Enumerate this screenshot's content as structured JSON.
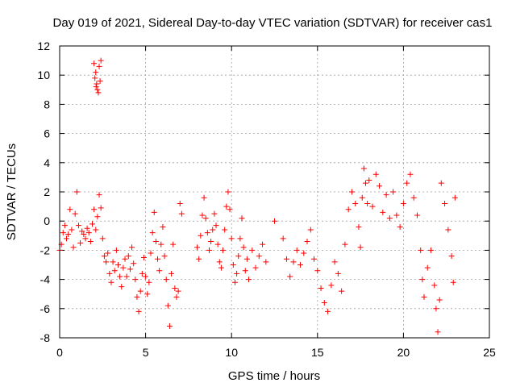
{
  "chart_data": {
    "type": "scatter",
    "title": "Day 019 of 2021, Sidereal Day-to-day VTEC variation (SDTVAR) for receiver cas1",
    "xlabel": "GPS time / hours",
    "ylabel": "SDTVAR / TECUs",
    "xlim": [
      0,
      25
    ],
    "ylim": [
      -8,
      12
    ],
    "xticks": [
      0,
      5,
      10,
      15,
      20,
      25
    ],
    "yticks": [
      -8,
      -6,
      -4,
      -2,
      0,
      2,
      4,
      6,
      8,
      10,
      12
    ],
    "grid": true,
    "marker": "+",
    "series_color": "#ff0000",
    "series": [
      {
        "name": "SDTVAR",
        "points": [
          [
            0.0,
            -2.0
          ],
          [
            0.1,
            -1.6
          ],
          [
            0.2,
            -0.8
          ],
          [
            0.3,
            -0.3
          ],
          [
            0.4,
            -1.2
          ],
          [
            0.5,
            -0.9
          ],
          [
            0.6,
            0.8
          ],
          [
            0.7,
            -0.6
          ],
          [
            0.8,
            -1.8
          ],
          [
            0.9,
            0.5
          ],
          [
            1.0,
            2.0
          ],
          [
            1.1,
            -0.3
          ],
          [
            1.2,
            -1.5
          ],
          [
            1.3,
            -0.7
          ],
          [
            1.4,
            -0.9
          ],
          [
            1.5,
            -1.2
          ],
          [
            1.6,
            -0.5
          ],
          [
            1.7,
            -0.8
          ],
          [
            1.8,
            -1.4
          ],
          [
            1.9,
            -0.2
          ],
          [
            2.0,
            0.8
          ],
          [
            2.1,
            -0.6
          ],
          [
            2.2,
            0.3
          ],
          [
            2.3,
            1.8
          ],
          [
            2.4,
            0.9
          ],
          [
            2.5,
            -1.2
          ],
          [
            2.6,
            -2.4
          ],
          [
            2.7,
            -2.8
          ],
          [
            2.8,
            -2.2
          ],
          [
            2.9,
            -3.6
          ],
          [
            3.0,
            -4.2
          ],
          [
            3.1,
            -2.8
          ],
          [
            3.2,
            -3.4
          ],
          [
            3.3,
            -2.0
          ],
          [
            3.4,
            -3.0
          ],
          [
            3.5,
            -3.8
          ],
          [
            3.6,
            -4.5
          ],
          [
            3.7,
            -3.2
          ],
          [
            3.8,
            -2.6
          ],
          [
            3.9,
            -3.8
          ],
          [
            4.0,
            -2.4
          ],
          [
            4.1,
            -3.3
          ],
          [
            4.2,
            -1.8
          ],
          [
            4.3,
            -2.9
          ],
          [
            4.4,
            -4.0
          ],
          [
            4.5,
            -5.2
          ],
          [
            4.6,
            -6.2
          ],
          [
            4.7,
            -4.8
          ],
          [
            4.8,
            -3.6
          ],
          [
            4.9,
            -2.5
          ],
          [
            5.0,
            -3.8
          ],
          [
            5.1,
            -5.0
          ],
          [
            5.2,
            -4.2
          ],
          [
            5.3,
            -2.2
          ],
          [
            5.4,
            -0.8
          ],
          [
            5.5,
            0.6
          ],
          [
            5.6,
            -1.4
          ],
          [
            5.7,
            -2.6
          ],
          [
            5.8,
            -3.4
          ],
          [
            5.9,
            -1.6
          ],
          [
            6.0,
            -0.4
          ],
          [
            6.1,
            -2.4
          ],
          [
            6.2,
            -4.0
          ],
          [
            6.3,
            -5.8
          ],
          [
            6.4,
            -7.2
          ],
          [
            6.5,
            -3.6
          ],
          [
            6.6,
            -1.6
          ],
          [
            6.7,
            -4.6
          ],
          [
            6.8,
            -5.2
          ],
          [
            6.9,
            -4.8
          ],
          [
            7.0,
            1.2
          ],
          [
            7.1,
            0.5
          ],
          [
            2.0,
            10.8
          ],
          [
            2.05,
            9.8
          ],
          [
            2.1,
            10.2
          ],
          [
            2.15,
            9.4
          ],
          [
            2.2,
            9.0
          ],
          [
            2.25,
            8.8
          ],
          [
            2.3,
            10.6
          ],
          [
            2.35,
            9.6
          ],
          [
            2.4,
            11.0
          ],
          [
            2.12,
            9.2
          ],
          [
            8.0,
            -1.8
          ],
          [
            8.1,
            -2.6
          ],
          [
            8.2,
            -1.0
          ],
          [
            8.3,
            0.4
          ],
          [
            8.4,
            1.6
          ],
          [
            8.5,
            0.2
          ],
          [
            8.6,
            -0.8
          ],
          [
            8.7,
            -2.0
          ],
          [
            8.8,
            -1.4
          ],
          [
            8.9,
            -0.6
          ],
          [
            9.0,
            0.5
          ],
          [
            9.1,
            -0.3
          ],
          [
            9.2,
            -1.6
          ],
          [
            9.3,
            -2.8
          ],
          [
            9.4,
            -3.2
          ],
          [
            9.5,
            -2.0
          ],
          [
            9.6,
            -0.6
          ],
          [
            9.7,
            1.0
          ],
          [
            9.8,
            2.0
          ],
          [
            9.9,
            0.8
          ],
          [
            10.0,
            -1.2
          ],
          [
            10.1,
            -3.0
          ],
          [
            10.2,
            -4.2
          ],
          [
            10.3,
            -3.6
          ],
          [
            10.4,
            -2.4
          ],
          [
            10.5,
            -1.2
          ],
          [
            10.6,
            0.2
          ],
          [
            10.7,
            -1.8
          ],
          [
            10.8,
            -3.4
          ],
          [
            10.9,
            -2.6
          ],
          [
            11.0,
            -4.0
          ],
          [
            11.2,
            -2.0
          ],
          [
            11.4,
            -3.2
          ],
          [
            11.6,
            -2.4
          ],
          [
            11.8,
            -1.6
          ],
          [
            12.0,
            -2.8
          ],
          [
            12.5,
            0.0
          ],
          [
            13.0,
            -1.2
          ],
          [
            13.2,
            -2.6
          ],
          [
            13.4,
            -3.8
          ],
          [
            13.6,
            -2.8
          ],
          [
            13.8,
            -2.0
          ],
          [
            14.0,
            -3.0
          ],
          [
            14.2,
            -2.2
          ],
          [
            14.4,
            -1.4
          ],
          [
            14.6,
            -0.6
          ],
          [
            14.8,
            -2.6
          ],
          [
            15.0,
            -3.4
          ],
          [
            15.2,
            -4.6
          ],
          [
            15.4,
            -5.6
          ],
          [
            15.6,
            -6.2
          ],
          [
            15.8,
            -4.4
          ],
          [
            16.0,
            -2.8
          ],
          [
            16.2,
            -3.6
          ],
          [
            16.4,
            -4.8
          ],
          [
            16.6,
            -1.6
          ],
          [
            16.8,
            0.8
          ],
          [
            17.0,
            2.0
          ],
          [
            17.2,
            1.2
          ],
          [
            17.4,
            -0.4
          ],
          [
            17.5,
            -1.8
          ],
          [
            17.6,
            1.6
          ],
          [
            17.7,
            3.6
          ],
          [
            17.8,
            2.6
          ],
          [
            17.9,
            1.2
          ],
          [
            18.0,
            2.8
          ],
          [
            18.2,
            1.0
          ],
          [
            18.4,
            3.2
          ],
          [
            18.6,
            2.4
          ],
          [
            18.8,
            0.6
          ],
          [
            19.0,
            1.8
          ],
          [
            19.2,
            0.2
          ],
          [
            19.4,
            2.0
          ],
          [
            19.6,
            0.4
          ],
          [
            19.8,
            -0.4
          ],
          [
            20.0,
            1.2
          ],
          [
            20.2,
            2.6
          ],
          [
            20.4,
            3.2
          ],
          [
            20.6,
            1.6
          ],
          [
            20.8,
            0.4
          ],
          [
            21.0,
            -2.0
          ],
          [
            21.1,
            -4.0
          ],
          [
            21.2,
            -5.2
          ],
          [
            21.4,
            -3.2
          ],
          [
            21.6,
            -2.0
          ],
          [
            21.8,
            -4.4
          ],
          [
            21.9,
            -6.0
          ],
          [
            22.0,
            -7.6
          ],
          [
            22.1,
            -5.4
          ],
          [
            22.2,
            2.6
          ],
          [
            22.4,
            1.2
          ],
          [
            22.6,
            -0.6
          ],
          [
            22.8,
            -2.4
          ],
          [
            22.9,
            -4.2
          ],
          [
            23.0,
            1.6
          ]
        ]
      }
    ]
  }
}
